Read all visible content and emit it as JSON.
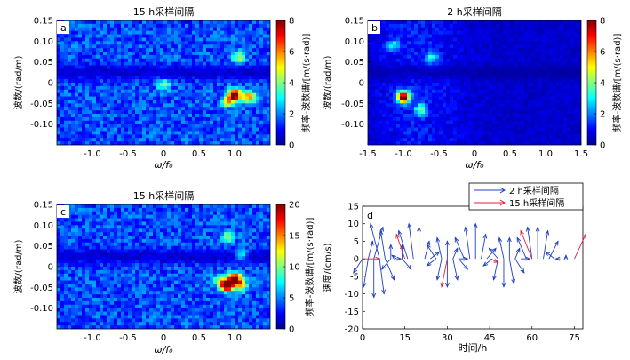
{
  "colors": {
    "jet": [
      "#00008f",
      "#0000ff",
      "#0080ff",
      "#00ffff",
      "#80ff80",
      "#ffff00",
      "#ff8000",
      "#ff0000",
      "#800000"
    ],
    "series_blue": "#1f3fbf",
    "series_red": "#e0203a",
    "frame": "#000000"
  },
  "chart_data": [
    {
      "id": "a",
      "type": "heatmap",
      "panel_label": "a",
      "title": "15 h采样间隔",
      "xlabel": "ω/f₀",
      "ylabel": "波数/(rad/m)",
      "colorbar_label": "频率-波数谱/[m/(s·rad)]",
      "xlim": [
        -1.5,
        1.5
      ],
      "ylim": [
        -0.15,
        0.15
      ],
      "xticks": [
        "-1.0",
        "-0.5",
        "0",
        "0.5",
        "1.0"
      ],
      "xtick_values": [
        -1.0,
        -0.5,
        0,
        0.5,
        1.0
      ],
      "yticks": [
        "0.15",
        "0.10",
        "0.05",
        "0",
        "-0.05",
        "-0.10"
      ],
      "ytick_values": [
        0.15,
        0.1,
        0.05,
        0,
        -0.05,
        -0.1
      ],
      "clim": [
        0,
        8
      ],
      "cbar_ticks": [
        "8",
        "6",
        "4",
        "2",
        "0"
      ],
      "cbar_tick_values": [
        8,
        6,
        4,
        2,
        0
      ],
      "background_level": 1.6,
      "peaks": [
        {
          "x": 1.0,
          "y": -0.03,
          "value": 8.0
        },
        {
          "x": 1.2,
          "y": -0.035,
          "value": 4.5
        },
        {
          "x": 0.9,
          "y": -0.045,
          "value": 3.2
        },
        {
          "x": 1.05,
          "y": 0.06,
          "value": 3.0
        },
        {
          "x": 0.0,
          "y": -0.005,
          "value": 2.8
        }
      ]
    },
    {
      "id": "b",
      "type": "heatmap",
      "panel_label": "b",
      "title": "2 h采样间隔",
      "xlabel": "ω/f₀",
      "ylabel": "波数/(rad/m)",
      "colorbar_label": "频率-波数谱/[m/(s·rad)]",
      "xlim": [
        -1.5,
        1.5
      ],
      "ylim": [
        -0.15,
        0.15
      ],
      "xticks": [
        "-1.5",
        "-1.0",
        "-0.5",
        "0",
        "0.5",
        "1.0",
        "1.5"
      ],
      "xtick_values": [
        -1.5,
        -1.0,
        -0.5,
        0,
        0.5,
        1.0,
        1.5
      ],
      "yticks": [
        "0.15",
        "0.10",
        "0.05",
        "0",
        "-0.05",
        "-0.10"
      ],
      "ytick_values": [
        0.15,
        0.1,
        0.05,
        0,
        -0.05,
        -0.1
      ],
      "clim": [
        0,
        8
      ],
      "cbar_ticks": [
        "8",
        "6",
        "4",
        "2",
        "0"
      ],
      "cbar_tick_values": [
        8,
        6,
        4,
        2,
        0
      ],
      "background_level": 1.0,
      "peaks": [
        {
          "x": -1.0,
          "y": -0.035,
          "value": 8.0
        },
        {
          "x": -0.75,
          "y": -0.065,
          "value": 3.0
        },
        {
          "x": -0.6,
          "y": 0.06,
          "value": 2.2
        },
        {
          "x": -1.15,
          "y": 0.09,
          "value": 2.0
        }
      ]
    },
    {
      "id": "c",
      "type": "heatmap",
      "panel_label": "c",
      "title": "15 h采样间隔",
      "xlabel": "ω/f₀",
      "ylabel": "波数/(rad/m)",
      "colorbar_label": "频率-波数谱/[m/(s·rad)]",
      "xlim": [
        -1.5,
        1.5
      ],
      "ylim": [
        -0.15,
        0.15
      ],
      "xticks": [
        "-1.0",
        "-0.5",
        "0",
        "0.5",
        "1.0"
      ],
      "xtick_values": [
        -1.0,
        -0.5,
        0,
        0.5,
        1.0
      ],
      "yticks": [
        "0.15",
        "0.10",
        "0.05",
        "0",
        "-0.05",
        "-0.10"
      ],
      "ytick_values": [
        0.15,
        0.1,
        0.05,
        0,
        -0.05,
        -0.1
      ],
      "clim": [
        0,
        20
      ],
      "cbar_ticks": [
        "20",
        "15",
        "10",
        "5",
        "0"
      ],
      "cbar_tick_values": [
        20,
        15,
        10,
        5,
        0
      ],
      "background_level": 4.0,
      "peaks": [
        {
          "x": 1.0,
          "y": -0.03,
          "value": 20.0
        },
        {
          "x": 0.9,
          "y": -0.045,
          "value": 18.0
        },
        {
          "x": 0.8,
          "y": -0.035,
          "value": 9.0
        },
        {
          "x": 1.1,
          "y": -0.045,
          "value": 8.0
        },
        {
          "x": 0.9,
          "y": 0.07,
          "value": 7.0
        },
        {
          "x": 1.1,
          "y": 0.03,
          "value": 6.0
        }
      ]
    },
    {
      "id": "d",
      "type": "vector",
      "panel_label": "d",
      "xlabel": "时间/h",
      "ylabel": "速度/(cm/s)",
      "xlim": [
        0,
        78
      ],
      "ylim": [
        -20,
        15
      ],
      "xticks": [
        "0",
        "15",
        "30",
        "45",
        "60",
        "75"
      ],
      "xtick_values": [
        0,
        15,
        30,
        45,
        60,
        75
      ],
      "yticks": [
        "15",
        "10",
        "5",
        "0",
        "-5",
        "-10",
        "-15",
        "-20"
      ],
      "ytick_values": [
        15,
        10,
        5,
        0,
        -5,
        -10,
        -15,
        -20
      ],
      "legend": [
        {
          "label": "2 h采样间隔",
          "color": "#1f3fbf"
        },
        {
          "label": "15 h采样间隔",
          "color": "#e0203a"
        }
      ],
      "series": [
        {
          "legend_index": 0,
          "vectors": [
            [
              0,
              -4
            ],
            [
              2,
              -8
            ],
            [
              4,
              -11
            ],
            [
              6,
              -10
            ],
            [
              8,
              -6
            ],
            [
              10,
              -3
            ],
            [
              12,
              1
            ],
            [
              14,
              4
            ],
            [
              2,
              5
            ],
            [
              4,
              9
            ],
            [
              6,
              10
            ],
            [
              8,
              8
            ],
            [
              10,
              4
            ],
            [
              12,
              0
            ],
            [
              14,
              -3
            ],
            [
              16,
              8
            ],
            [
              18,
              10
            ],
            [
              20,
              9
            ],
            [
              22,
              5
            ],
            [
              24,
              2
            ],
            [
              26,
              -2
            ],
            [
              28,
              -6
            ],
            [
              30,
              -8
            ],
            [
              32,
              -6
            ],
            [
              34,
              -3
            ],
            [
              26,
              4
            ],
            [
              28,
              6
            ],
            [
              30,
              5
            ],
            [
              32,
              3
            ],
            [
              34,
              0
            ],
            [
              36,
              6
            ],
            [
              38,
              9
            ],
            [
              40,
              10
            ],
            [
              42,
              7
            ],
            [
              44,
              3
            ],
            [
              46,
              -2
            ],
            [
              48,
              -6
            ],
            [
              50,
              -8
            ],
            [
              52,
              -7
            ],
            [
              54,
              -4
            ],
            [
              48,
              3
            ],
            [
              50,
              6
            ],
            [
              52,
              6
            ],
            [
              54,
              3
            ],
            [
              56,
              0
            ],
            [
              58,
              6
            ],
            [
              60,
              9
            ],
            [
              62,
              9
            ],
            [
              64,
              8
            ],
            [
              66,
              5
            ],
            [
              68,
              2
            ],
            [
              70,
              0
            ],
            [
              72,
              1
            ]
          ]
        },
        {
          "legend_index": 1,
          "vectors": [
            [
              0,
              0
            ],
            [
              15,
              0
            ],
            [
              30,
              0
            ],
            [
              45,
              0
            ],
            [
              60,
              0
            ],
            [
              75,
              0
            ]
          ],
          "vectors_uv": [
            [
              6,
              0
            ],
            [
              -3,
              7
            ],
            [
              -2,
              -8
            ],
            [
              3,
              -1
            ],
            [
              -4,
              8
            ],
            [
              4,
              7
            ]
          ]
        }
      ]
    }
  ]
}
